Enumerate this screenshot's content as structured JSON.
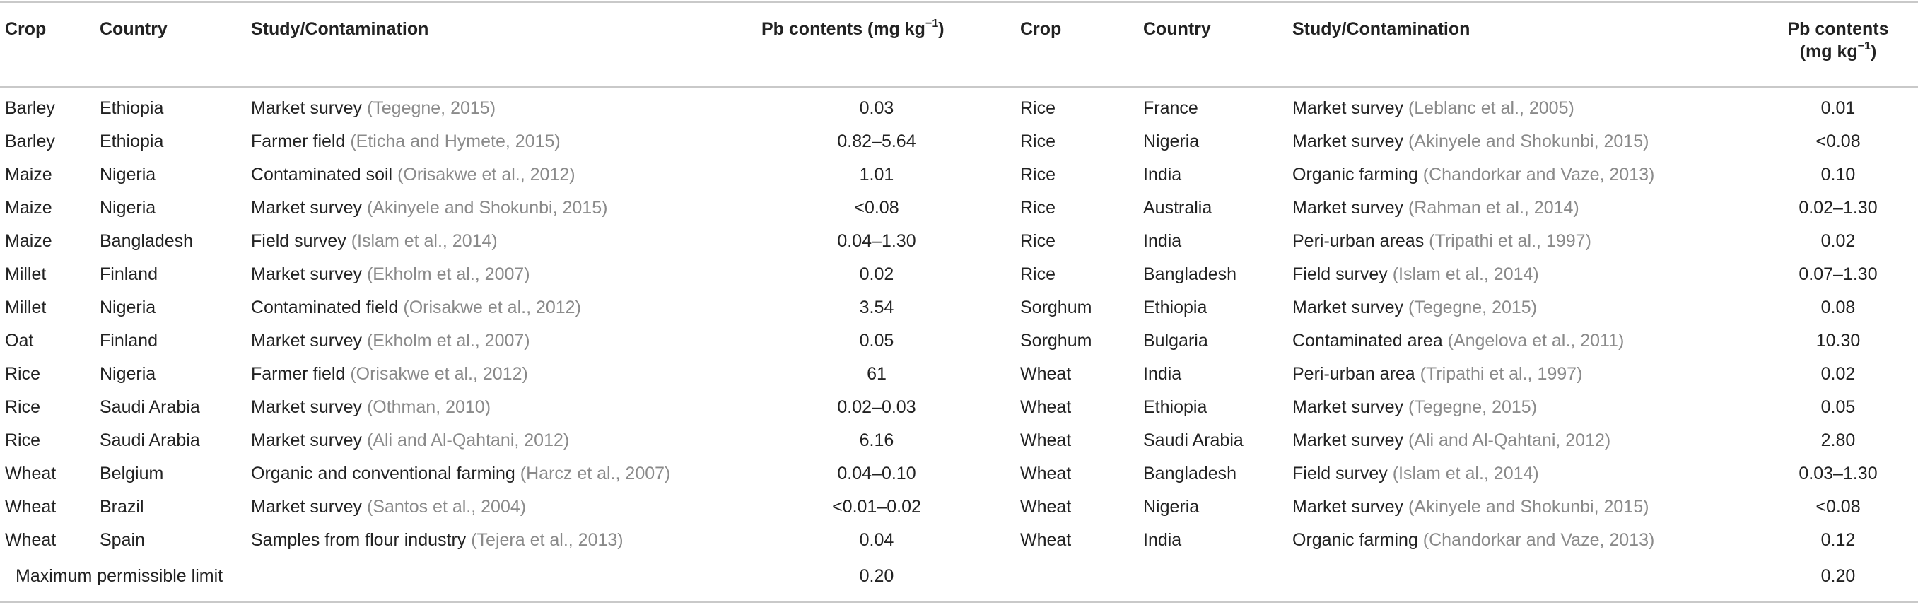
{
  "headers": {
    "crop": "Crop",
    "country": "Country",
    "study": "Study/Contamination",
    "pb_left": "Pb contents (mg kg",
    "pb_sup": "−1",
    "pb_close": ")",
    "pb_right_line1": "Pb contents",
    "pb_right_line2": "(mg kg"
  },
  "left_rows": [
    {
      "crop": "Barley",
      "country": "Ethiopia",
      "study": "Market survey ",
      "ref": "(Tegegne, 2015)",
      "pb": "0.03"
    },
    {
      "crop": "Barley",
      "country": "Ethiopia",
      "study": "Farmer field ",
      "ref": "(Eticha and Hymete, 2015)",
      "pb": "0.82–5.64"
    },
    {
      "crop": "Maize",
      "country": "Nigeria",
      "study": "Contaminated soil ",
      "ref": "(Orisakwe et al., 2012)",
      "pb": "1.01"
    },
    {
      "crop": "Maize",
      "country": "Nigeria",
      "study": "Market survey ",
      "ref": "(Akinyele and Shokunbi, 2015)",
      "pb": "<0.08"
    },
    {
      "crop": "Maize",
      "country": "Bangladesh",
      "study": "Field survey ",
      "ref": "(Islam et al., 2014)",
      "pb": "0.04–1.30"
    },
    {
      "crop": "Millet",
      "country": "Finland",
      "study": "Market survey ",
      "ref": "(Ekholm et al., 2007)",
      "pb": "0.02"
    },
    {
      "crop": "Millet",
      "country": "Nigeria",
      "study": "Contaminated field ",
      "ref": "(Orisakwe et al., 2012)",
      "pb": "3.54"
    },
    {
      "crop": "Oat",
      "country": "Finland",
      "study": "Market survey ",
      "ref": "(Ekholm et al., 2007)",
      "pb": "0.05"
    },
    {
      "crop": "Rice",
      "country": "Nigeria",
      "study": "Farmer field ",
      "ref": "(Orisakwe et al., 2012)",
      "pb": "61"
    },
    {
      "crop": "Rice",
      "country": "Saudi Arabia",
      "study": "Market survey ",
      "ref": "(Othman, 2010)",
      "pb": "0.02–0.03"
    },
    {
      "crop": "Rice",
      "country": "Saudi Arabia",
      "study": "Market survey ",
      "ref": "(Ali and Al-Qahtani, 2012)",
      "pb": "6.16"
    },
    {
      "crop": "Wheat",
      "country": "Belgium",
      "study": "Organic and conventional farming ",
      "ref": "(Harcz et al., 2007)",
      "pb": "0.04–0.10"
    },
    {
      "crop": "Wheat",
      "country": "Brazil",
      "study": "Market survey ",
      "ref": "(Santos et al., 2004)",
      "pb": "<0.01–0.02"
    },
    {
      "crop": "Wheat",
      "country": "Spain",
      "study": "Samples from flour industry ",
      "ref": "(Tejera et al., 2013)",
      "pb": "0.04"
    }
  ],
  "right_rows": [
    {
      "crop": "Rice",
      "country": "France",
      "study": "Market survey ",
      "ref": "(Leblanc et al., 2005)",
      "pb": "0.01"
    },
    {
      "crop": "Rice",
      "country": "Nigeria",
      "study": "Market survey ",
      "ref": "(Akinyele and Shokunbi, 2015)",
      "pb": "<0.08"
    },
    {
      "crop": "Rice",
      "country": "India",
      "study": "Organic farming ",
      "ref": "(Chandorkar and Vaze, 2013)",
      "pb": "0.10"
    },
    {
      "crop": "Rice",
      "country": "Australia",
      "study": "Market survey ",
      "ref": "(Rahman et al., 2014)",
      "pb": "0.02–1.30"
    },
    {
      "crop": "Rice",
      "country": "India",
      "study": "Peri-urban areas ",
      "ref": "(Tripathi et al., 1997)",
      "pb": "0.02"
    },
    {
      "crop": "Rice",
      "country": "Bangladesh",
      "study": "Field survey ",
      "ref": "(Islam et al., 2014)",
      "pb": "0.07–1.30"
    },
    {
      "crop": "Sorghum",
      "country": "Ethiopia",
      "study": "Market survey ",
      "ref": "(Tegegne, 2015)",
      "pb": "0.08"
    },
    {
      "crop": "Sorghum",
      "country": "Bulgaria",
      "study": "Contaminated area ",
      "ref": "(Angelova et al., 2011)",
      "pb": "10.30"
    },
    {
      "crop": "Wheat",
      "country": "India",
      "study": "Peri-urban area ",
      "ref": "(Tripathi et al., 1997)",
      "pb": "0.02"
    },
    {
      "crop": "Wheat",
      "country": "Ethiopia",
      "study": "Market survey ",
      "ref": "(Tegegne, 2015)",
      "pb": "0.05"
    },
    {
      "crop": "Wheat",
      "country": "Saudi Arabia",
      "study": "Market survey ",
      "ref": "(Ali and Al-Qahtani, 2012)",
      "pb": "2.80"
    },
    {
      "crop": "Wheat",
      "country": "Bangladesh",
      "study": "Field survey ",
      "ref": "(Islam et al., 2014)",
      "pb": "0.03–1.30"
    },
    {
      "crop": "Wheat",
      "country": "Nigeria",
      "study": "Market survey ",
      "ref": "(Akinyele and Shokunbi, 2015)",
      "pb": "<0.08"
    },
    {
      "crop": "Wheat",
      "country": "India",
      "study": "Organic farming ",
      "ref": "(Chandorkar and Vaze, 2013)",
      "pb": "0.12"
    }
  ],
  "footer": {
    "label": "Maximum permissible limit",
    "left_value": "0.20",
    "right_value": "0.20"
  }
}
